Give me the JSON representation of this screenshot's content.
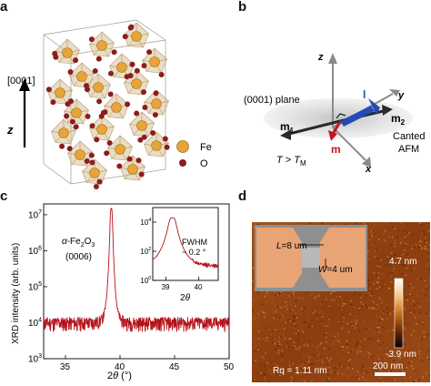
{
  "panels": {
    "a": {
      "label": "a",
      "axis_label": "z",
      "direction_label": "[0001]",
      "legend": [
        {
          "label": "Fe",
          "color": "#e7a43a"
        },
        {
          "label": "O",
          "color": "#8b1d1d"
        }
      ],
      "octahedron_color": "#d8c196"
    },
    "b": {
      "label": "b",
      "axes": {
        "z": "z",
        "y": "y",
        "x": "x"
      },
      "plane_label": "(0001) plane",
      "vector_l": "l",
      "vector_m": "m",
      "m1": "m",
      "m1_sub": "1",
      "m2": "m",
      "m2_sub": "2",
      "canted_line1": "Canted",
      "canted_line2": "AFM",
      "temp_T": "T",
      "temp_rel": " > ",
      "temp_TM": "T",
      "temp_TM_sub": "M",
      "colors": {
        "l": "#2549b8",
        "m": "#c0161e",
        "sublattice": "#2a2a2a"
      }
    },
    "c": {
      "label": "c",
      "sample_alpha": "α",
      "sample_formula": "-Fe",
      "sample_sub2": "2",
      "sample_O": "O",
      "sample_sub3": "3",
      "reflection": "(0006)",
      "ylabel": "XRD intensity (arb. units)",
      "xlabel_2": "2",
      "xlabel_theta": "θ",
      "xlabel_unit": " (°)",
      "inset_xlabel_2": "2",
      "inset_xlabel_theta": "θ",
      "fwhm_label": "FWHM",
      "fwhm_value": "~ 0.2 °",
      "line_color": "#b5121b"
    },
    "d": {
      "label": "d",
      "L_label": "L",
      "L_value": "=8 um",
      "W_label": "W",
      "W_value": "=4 um",
      "colorbar_max": "4.7 nm",
      "colorbar_min": "-3.9 nm",
      "rq": "Rq = 1.11 nm",
      "scale_bar": "200 nm"
    }
  },
  "chart_data": [
    {
      "type": "line",
      "panel": "c-main",
      "x_scale": "linear",
      "y_scale": "log",
      "xlim": [
        33,
        50
      ],
      "ylim": [
        1000,
        20000000
      ],
      "x_ticks": [
        35,
        40,
        45,
        50
      ],
      "y_ticks": [
        1000,
        10000,
        100000,
        1000000,
        10000000
      ],
      "y_tick_labels": [
        "10",
        "10",
        "10",
        "10",
        "10"
      ],
      "y_tick_exps": [
        "3",
        "4",
        "5",
        "6",
        "7"
      ],
      "x_tick_labels": [
        "35",
        "40",
        "45",
        "50"
      ],
      "baseline": 10000,
      "peak_center": 39.2,
      "peak_height": 15000000,
      "peak_fwhm": 0.2
    },
    {
      "type": "line",
      "panel": "c-inset",
      "x_scale": "linear",
      "y_scale": "log",
      "xlim": [
        38.6,
        40.6
      ],
      "ylim": [
        1,
        100000
      ],
      "x_ticks": [
        39,
        40
      ],
      "x_tick_labels": [
        "39",
        "40"
      ],
      "y_ticks": [
        1,
        100,
        10000
      ],
      "y_tick_labels": [
        "10",
        "10",
        "10"
      ],
      "y_tick_exps": [
        "0",
        "2",
        "4"
      ],
      "baseline": 10,
      "peak_center": 39.2,
      "peak_height": 20000,
      "peak_fwhm": 0.2
    }
  ]
}
